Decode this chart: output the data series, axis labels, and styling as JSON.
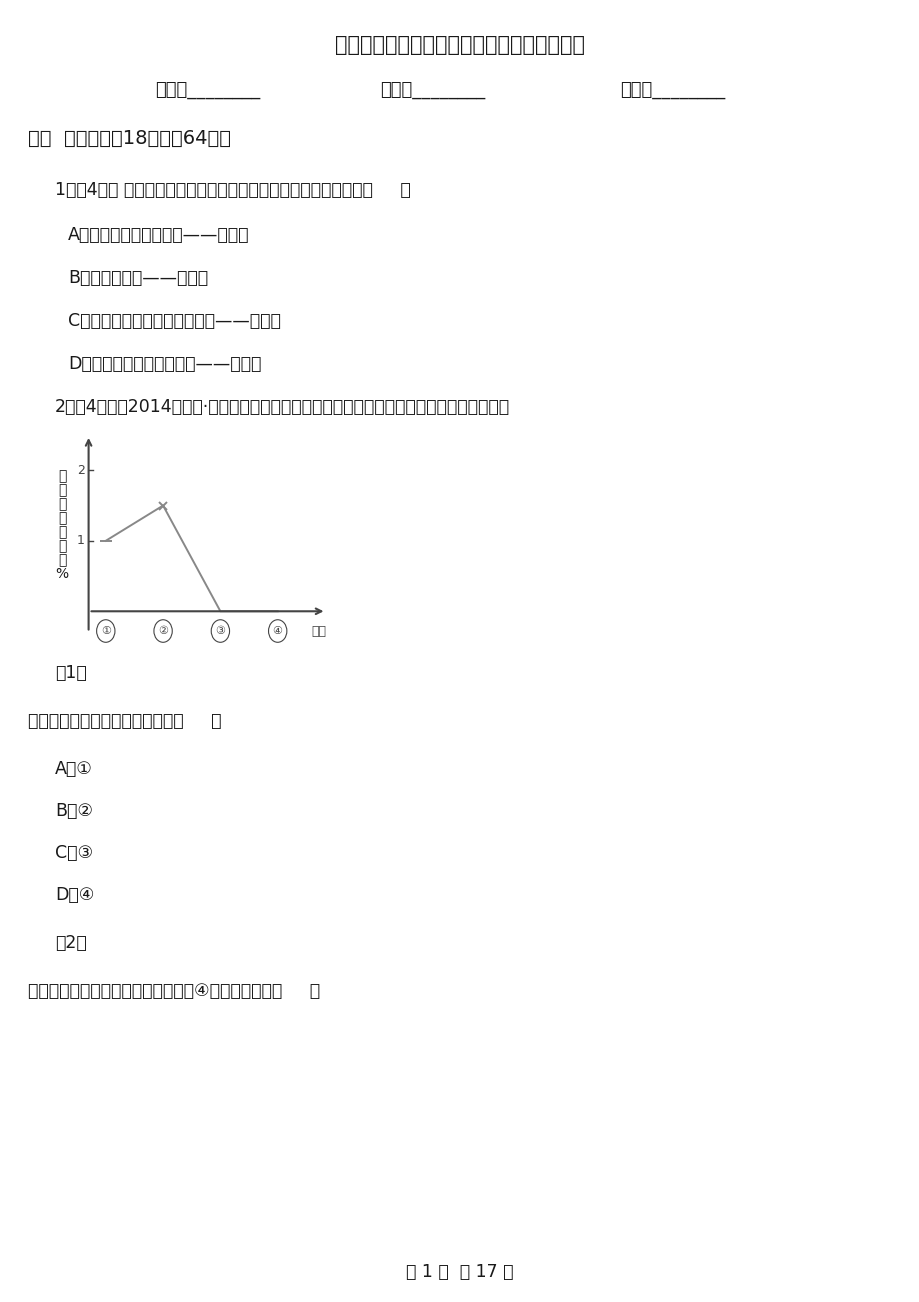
{
  "title": "河南省郑州市高一下学期地理第一次月考试卷",
  "name_label": "姓名：________",
  "class_label": "班级：________",
  "score_label": "成绩：________",
  "section_title": "一、  单选题（共18题；共64分）",
  "q1_stem": "1．（4分） 下列人口再生产类型与其地区分布的配伍，正确的是（     ）",
  "q1_a": "A．绝大多数发展中国家——原始型",
  "q1_b": "B．德国、芬兰——传统型",
  "q1_c": "C．中国东部经济发达的大城市——现代型",
  "q1_d": "D．南部非洲的大部分国家——现代型",
  "q2_stem": "2．（4分）（2014高一下·东莞月考）如图为某国人口自然增长率变化曲线图，据图回答下题",
  "graph_ylabel": "人\n口\n自\n然\n增\n长\n率\n%",
  "graph_xlabel": "时间",
  "graph_xticks": [
    "①",
    "②",
    "③",
    "④"
  ],
  "graph_data_x": [
    1,
    2,
    3,
    4
  ],
  "graph_data_y": [
    1.0,
    1.5,
    0.0,
    0.0
  ],
  "q2_sub1": "（1）",
  "q2_q1_text": "该国人口数量达到顶峰的时期为（     ）",
  "q2_q1_a": "A．①",
  "q2_q1_b": "B．②",
  "q2_q1_c": "C．③",
  "q2_q1_d": "D．④",
  "q2_sub2": "（2）",
  "q2_q2_text": "下列各国，目前人口发展情况与图示④阶段相似的是（     ）",
  "page_footer": "第 1 页  共 17 页",
  "bg_color": "#ffffff",
  "text_color": "#1a1a1a",
  "graph_line_color": "#888888",
  "graph_axis_color": "#444444"
}
